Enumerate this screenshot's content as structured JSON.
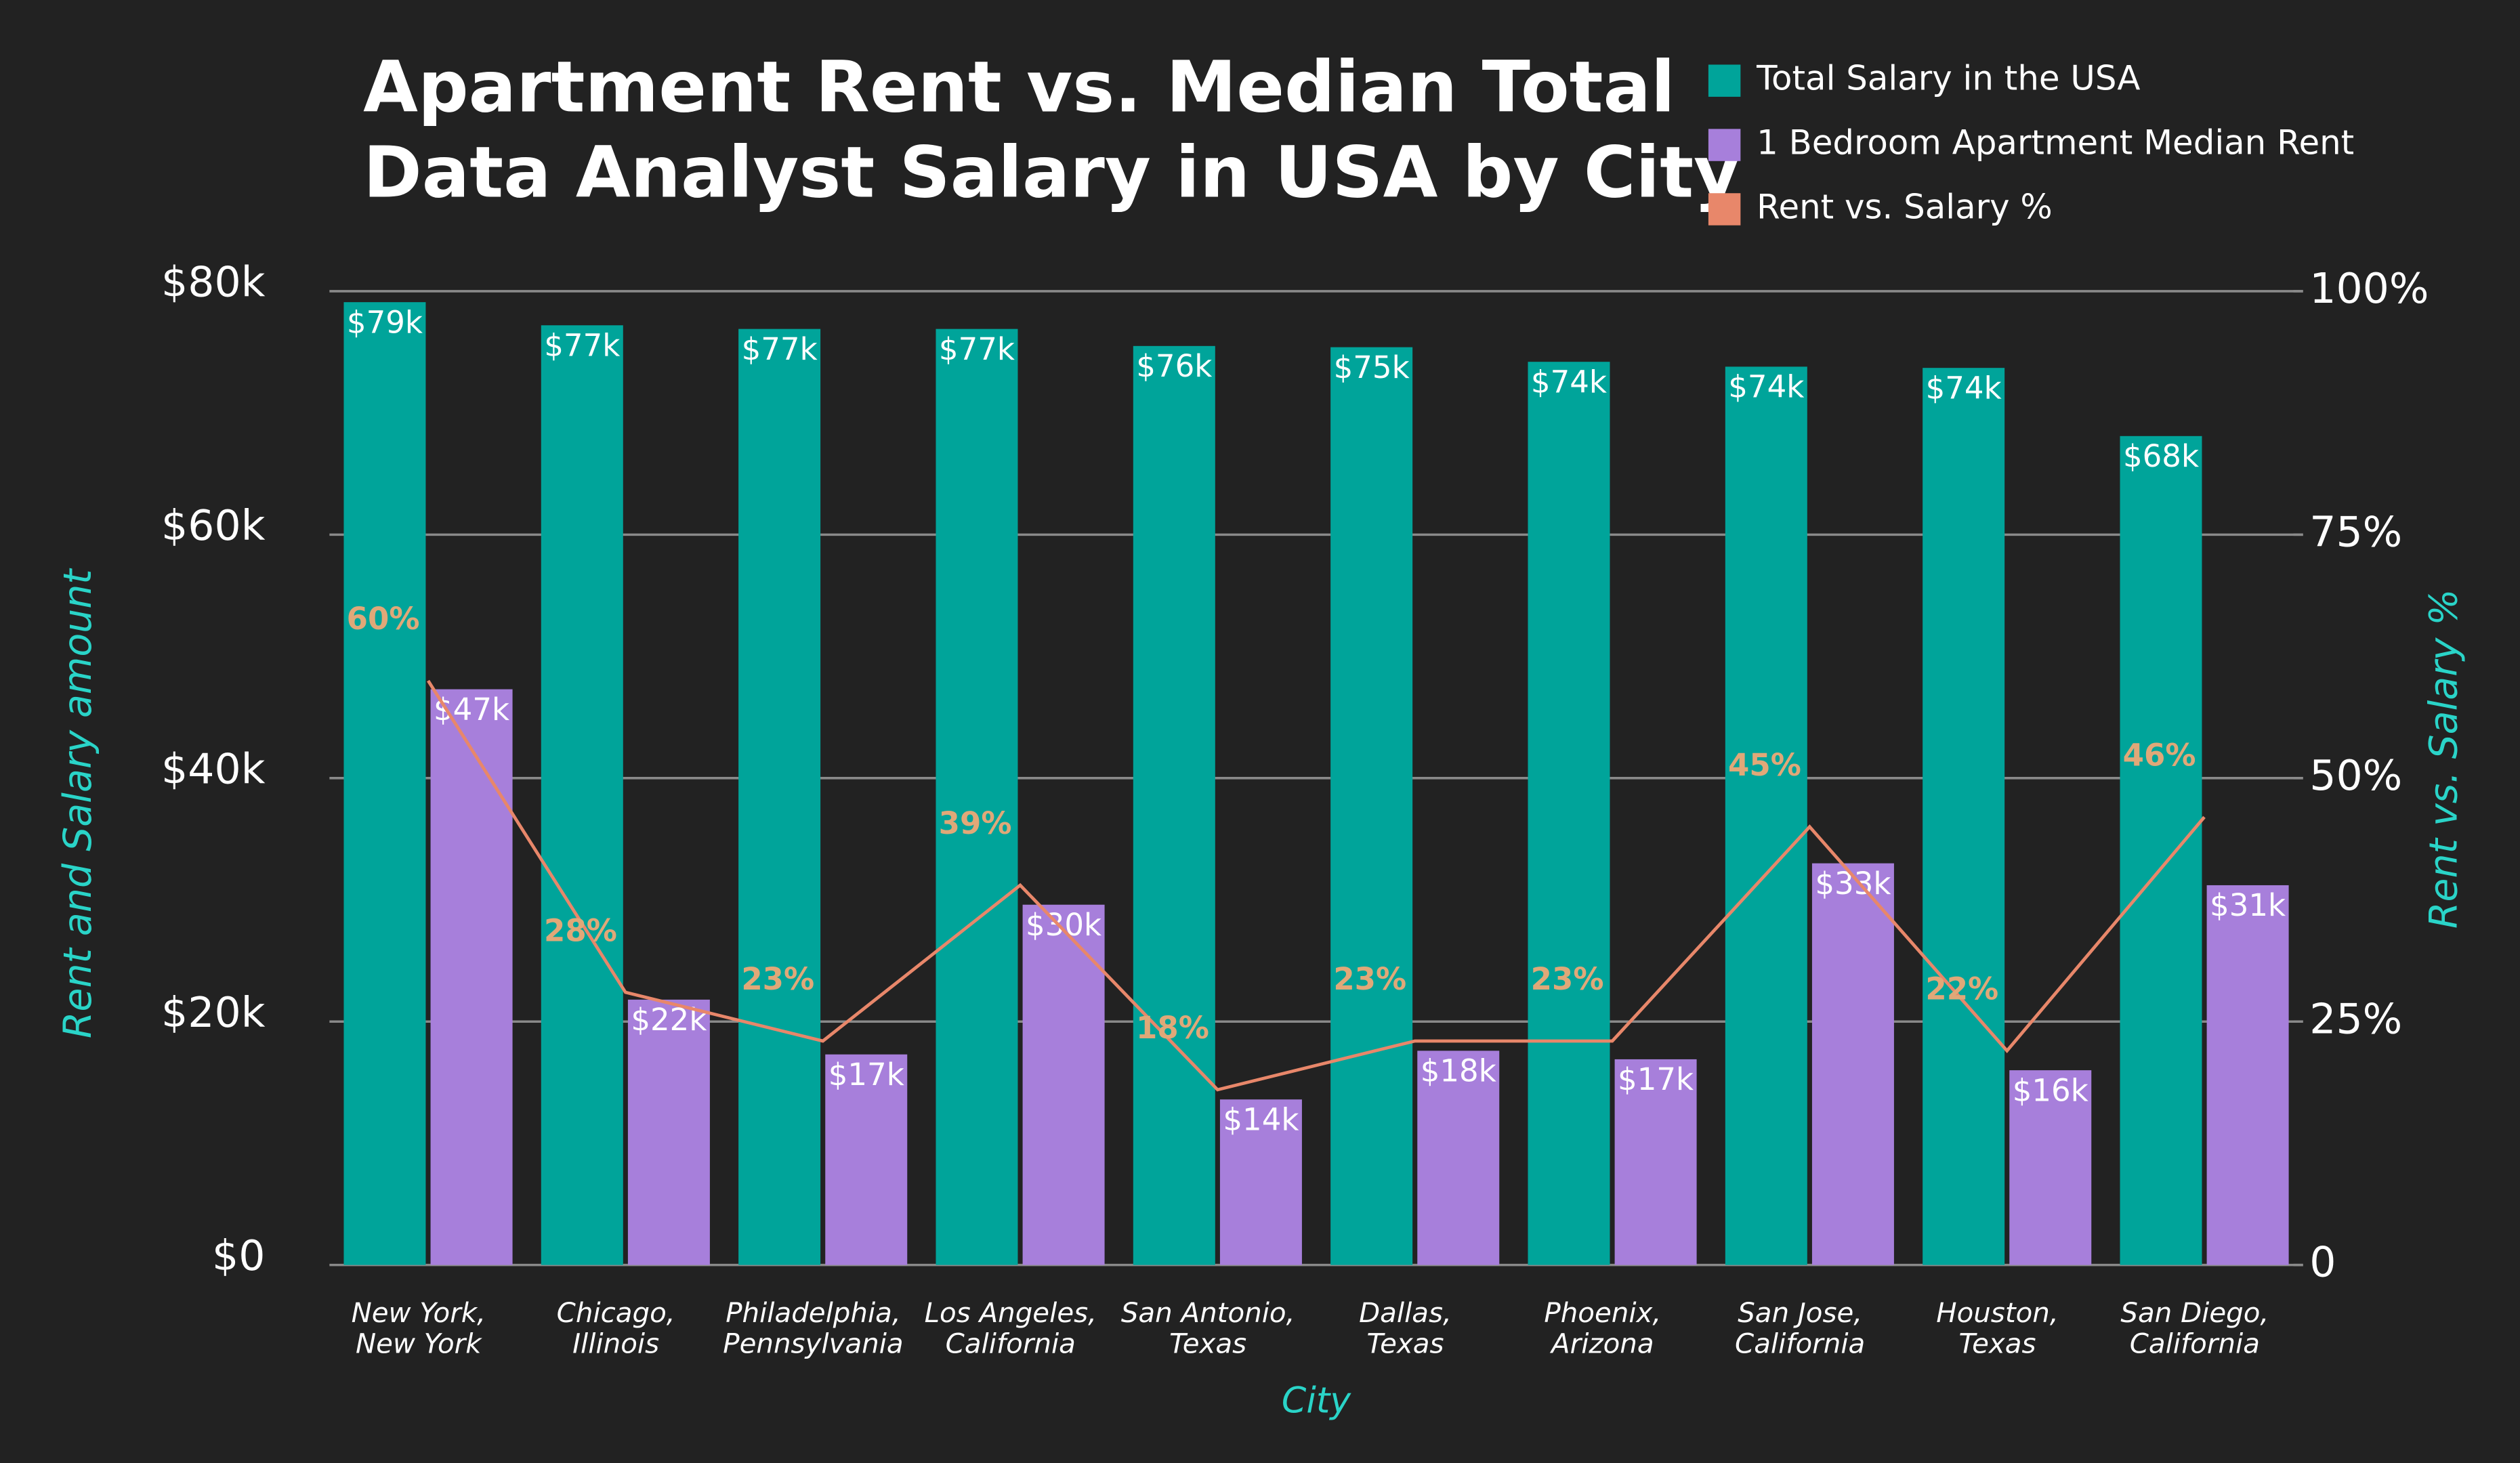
{
  "chart_data": {
    "type": "bar-line",
    "title": [
      "Apartment Rent vs. Median Total",
      "Data Analyst Salary in USA by City"
    ],
    "x_label": "City",
    "y_label": "Rent and Salary amount",
    "y2_label": "Rent vs. Salary %",
    "categories": [
      [
        "New York,",
        "New York"
      ],
      [
        "Chicago,",
        "Illinois"
      ],
      [
        "Philadelphia,",
        "Pennsylvania"
      ],
      [
        "Los Angeles,",
        "California"
      ],
      [
        "San Antonio,",
        "Texas"
      ],
      [
        "Dallas,",
        "Texas"
      ],
      [
        "Phoenix,",
        "Arizona"
      ],
      [
        "San Jose,",
        "California"
      ],
      [
        "Houston,",
        "Texas"
      ],
      [
        "San Diego,",
        "California"
      ]
    ],
    "series": [
      {
        "name": "Total Salary in the USA",
        "color": "#00a49a",
        "kind": "bar",
        "values": [
          79100,
          77200,
          76900,
          76900,
          75500,
          75400,
          74200,
          73800,
          73700,
          68100
        ],
        "value_labels": [
          "$79k",
          "$77k",
          "$77k",
          "$77k",
          "$76k",
          "$75k",
          "$74k",
          "$74k",
          "$74k",
          "$68k"
        ]
      },
      {
        "name": "1 Bedroom Apartment Median Rent",
        "color": "#a77fdb",
        "kind": "bar",
        "values": [
          47300,
          21800,
          17300,
          29600,
          13600,
          17600,
          16900,
          33000,
          16000,
          31200
        ],
        "value_labels": [
          "$47k",
          "$22k",
          "$17k",
          "$30k",
          "$14k",
          "$18k",
          "$17k",
          "$33k",
          "$16k",
          "$31k"
        ]
      },
      {
        "name": "Rent vs. Salary %",
        "color": "#e8876a",
        "kind": "line",
        "axis": "y2",
        "values": [
          60,
          28,
          23,
          39,
          18,
          23,
          23,
          45,
          22,
          46
        ],
        "value_labels": [
          "60%",
          "28%",
          "23%",
          "39%",
          "18%",
          "23%",
          "23%",
          "45%",
          "22%",
          "46%"
        ]
      }
    ],
    "ylim": [
      0,
      80000
    ],
    "yticks": [
      {
        "value": 0,
        "label": "$0"
      },
      {
        "value": 20000,
        "label": "$20k"
      },
      {
        "value": 40000,
        "label": "$40k"
      },
      {
        "value": 60000,
        "label": "$60k"
      },
      {
        "value": 80000,
        "label": "$80k"
      }
    ],
    "y2lim": [
      0,
      100
    ],
    "y2ticks": [
      0,
      {
        "value": 25,
        "label": "25%"
      },
      {
        "value": 50,
        "label": "50%"
      },
      {
        "value": 75,
        "label": "75%"
      },
      {
        "value": 100,
        "label": "100%"
      }
    ],
    "grid": true
  }
}
